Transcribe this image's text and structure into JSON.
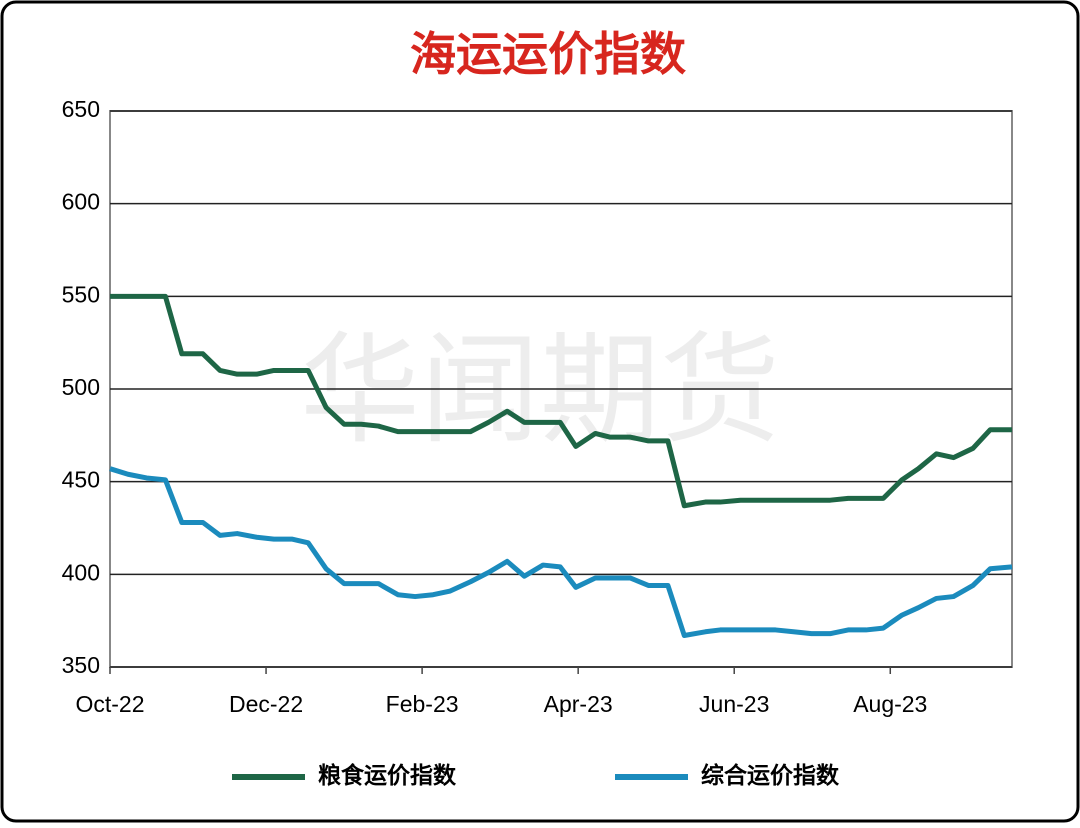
{
  "chart_data": {
    "type": "line",
    "title": "海运运价指数",
    "watermark": "华闻期货",
    "x": [
      0,
      0.23,
      0.47,
      0.71,
      0.92,
      1.19,
      1.41,
      1.63,
      1.88,
      2.1,
      2.33,
      2.54,
      2.77,
      3,
      3.22,
      3.44,
      3.69,
      3.91,
      4.14,
      4.36,
      4.62,
      4.85,
      5.09,
      5.31,
      5.55,
      5.77,
      5.97,
      6.22,
      6.41,
      6.67,
      6.9,
      7.15,
      7.36,
      7.63,
      7.82,
      8.08,
      8.29,
      8.53,
      8.76,
      8.99,
      9.23,
      9.46,
      9.69,
      9.91,
      10.15,
      10.36,
      10.59,
      10.81,
      11.06,
      11.28,
      11.56
    ],
    "series": [
      {
        "name": "粮食运价指数",
        "color": "#1e6646",
        "values": [
          550,
          550,
          550,
          550,
          519,
          519,
          510,
          508,
          508,
          510,
          510,
          510,
          490,
          481,
          481,
          480,
          477,
          477,
          477,
          477,
          477,
          482,
          488,
          482,
          482,
          482,
          469,
          476,
          474,
          474,
          472,
          472,
          437,
          439,
          439,
          440,
          440,
          440,
          440,
          440,
          440,
          441,
          441,
          441,
          451,
          457,
          465,
          463,
          468,
          478,
          478
        ]
      },
      {
        "name": "综合运价指数",
        "color": "#1b8bbd",
        "values": [
          457,
          454,
          452,
          451,
          428,
          428,
          421,
          422,
          420,
          419,
          419,
          417,
          403,
          395,
          395,
          395,
          389,
          388,
          389,
          391,
          396,
          401,
          407,
          399,
          405,
          404,
          393,
          398,
          398,
          398,
          394,
          394,
          367,
          369,
          370,
          370,
          370,
          370,
          369,
          368,
          368,
          370,
          370,
          371,
          378,
          382,
          387,
          388,
          394,
          403,
          404
        ]
      }
    ],
    "xlim": [
      0,
      11.56
    ],
    "xticks": [
      {
        "value": 0,
        "label": "Oct-22"
      },
      {
        "value": 2,
        "label": "Dec-22"
      },
      {
        "value": 4,
        "label": "Feb-23"
      },
      {
        "value": 6,
        "label": "Apr-23"
      },
      {
        "value": 8,
        "label": "Jun-23"
      },
      {
        "value": 10,
        "label": "Aug-23"
      }
    ],
    "ylim": [
      350,
      650
    ],
    "yticks": [
      350,
      400,
      450,
      500,
      550,
      600,
      650
    ],
    "grid": true,
    "legend": "bottom"
  }
}
